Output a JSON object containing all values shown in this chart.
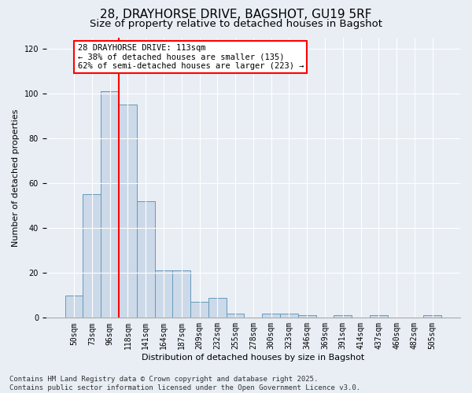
{
  "title_line1": "28, DRAYHORSE DRIVE, BAGSHOT, GU19 5RF",
  "title_line2": "Size of property relative to detached houses in Bagshot",
  "xlabel": "Distribution of detached houses by size in Bagshot",
  "ylabel": "Number of detached properties",
  "categories": [
    "50sqm",
    "73sqm",
    "96sqm",
    "118sqm",
    "141sqm",
    "164sqm",
    "187sqm",
    "209sqm",
    "232sqm",
    "255sqm",
    "278sqm",
    "300sqm",
    "323sqm",
    "346sqm",
    "369sqm",
    "391sqm",
    "414sqm",
    "437sqm",
    "460sqm",
    "482sqm",
    "505sqm"
  ],
  "values": [
    10,
    55,
    101,
    95,
    52,
    21,
    21,
    7,
    9,
    2,
    0,
    2,
    2,
    1,
    0,
    1,
    0,
    1,
    0,
    0,
    1
  ],
  "bar_color": "#ccd9e8",
  "bar_edge_color": "#6699bb",
  "reference_line_x": 2.5,
  "reference_line_color": "red",
  "annotation_text": "28 DRAYHORSE DRIVE: 113sqm\n← 38% of detached houses are smaller (135)\n62% of semi-detached houses are larger (223) →",
  "annotation_box_color": "white",
  "annotation_box_edge_color": "red",
  "ylim": [
    0,
    125
  ],
  "yticks": [
    0,
    20,
    40,
    60,
    80,
    100,
    120
  ],
  "background_color": "#e8eef4",
  "plot_background_color": "#e8eef4",
  "footer_text": "Contains HM Land Registry data © Crown copyright and database right 2025.\nContains public sector information licensed under the Open Government Licence v3.0.",
  "title_fontsize": 11,
  "subtitle_fontsize": 9.5,
  "axis_label_fontsize": 8,
  "tick_fontsize": 7,
  "annotation_fontsize": 7.5,
  "footer_fontsize": 6.5,
  "ylabel_fontsize": 8
}
